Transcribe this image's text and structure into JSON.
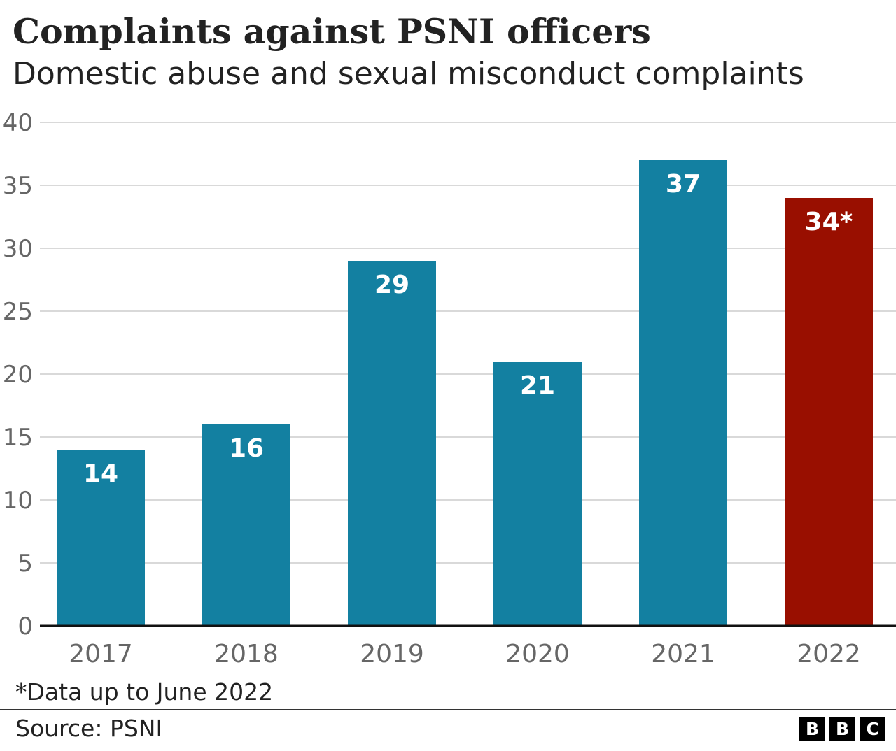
{
  "header": {
    "title": "Complaints against PSNI officers",
    "subtitle": "Domestic abuse and sexual misconduct complaints"
  },
  "chart_data": {
    "type": "bar",
    "title": "Complaints against PSNI officers",
    "subtitle": "Domestic abuse and sexual misconduct complaints",
    "categories": [
      "2017",
      "2018",
      "2019",
      "2020",
      "2021",
      "2022"
    ],
    "values": [
      14,
      16,
      29,
      21,
      37,
      34
    ],
    "data_labels": [
      "14",
      "16",
      "29",
      "21",
      "37",
      "34*"
    ],
    "bar_colors": [
      "#1380A1",
      "#1380A1",
      "#1380A1",
      "#1380A1",
      "#1380A1",
      "#990F00"
    ],
    "ylim": [
      0,
      40
    ],
    "yticks": [
      0,
      5,
      10,
      15,
      20,
      25,
      30,
      35,
      40
    ],
    "xlabel": "",
    "ylabel": "",
    "grid": true
  },
  "footer": {
    "footnote": "*Data up to June 2022",
    "source": "Source: PSNI",
    "logo": [
      "B",
      "B",
      "C"
    ]
  }
}
